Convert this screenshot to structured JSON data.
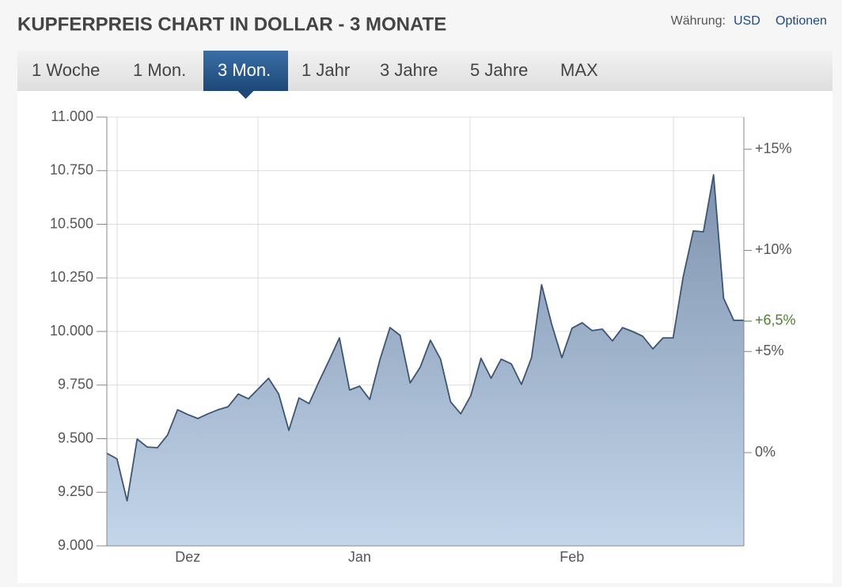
{
  "header": {
    "title": "KUPFERPREIS CHART IN DOLLAR - 3 MONATE",
    "currency_label": "Währung:",
    "currency": "USD",
    "options": "Optionen"
  },
  "tabs": {
    "items": [
      "1 Woche",
      "1 Mon.",
      "3 Mon.",
      "1 Jahr",
      "3 Jahre",
      "5 Jahre",
      "MAX"
    ],
    "active": 2
  },
  "chart_data": {
    "type": "area",
    "color": "#3d5573",
    "categories": [
      null,
      null,
      null,
      null,
      null,
      null,
      null,
      null,
      "Dez",
      null,
      null,
      null,
      null,
      null,
      null,
      null,
      null,
      null,
      null,
      null,
      null,
      null,
      null,
      null,
      null,
      "Jan",
      null,
      null,
      null,
      null,
      null,
      null,
      null,
      null,
      null,
      null,
      null,
      null,
      null,
      null,
      null,
      null,
      null,
      null,
      null,
      null,
      "Feb",
      null,
      null,
      null,
      null,
      null,
      null,
      null,
      null,
      null,
      null,
      null,
      null,
      null,
      null,
      null,
      null,
      null
    ],
    "values": [
      9432,
      9406,
      9210,
      9498,
      9461,
      9458,
      9517,
      9635,
      9613,
      9594,
      9616,
      9635,
      9649,
      9708,
      9686,
      9734,
      9782,
      9708,
      9539,
      9690,
      9664,
      9768,
      9867,
      9970,
      9727,
      9745,
      9683,
      9867,
      10018,
      9982,
      9760,
      9834,
      9959,
      9871,
      9672,
      9616,
      9701,
      9875,
      9782,
      9871,
      9849,
      9753,
      9878,
      10218,
      10033,
      9878,
      10015,
      10041,
      10004,
      10011,
      9956,
      10018,
      10000,
      9978,
      9919,
      9970,
      9970,
      10255,
      10469,
      10465,
      10731,
      10155,
      10052,
      10052
    ],
    "ylim": [
      9000,
      11000
    ],
    "yticks": [
      {
        "value": 9000,
        "label": "9.000"
      },
      {
        "value": 9250,
        "label": "9.250"
      },
      {
        "value": 9500,
        "label": "9.500"
      },
      {
        "value": 9750,
        "label": "9.750"
      },
      {
        "value": 10000,
        "label": "10.000"
      },
      {
        "value": 10250,
        "label": "10.250"
      },
      {
        "value": 10500,
        "label": "10.500"
      },
      {
        "value": 10750,
        "label": "10.750"
      },
      {
        "value": 11000,
        "label": "11.000"
      }
    ],
    "y2lim": [
      -4.61,
      16.59
    ],
    "y2ticks": [
      {
        "value": 0,
        "label": "0%"
      },
      {
        "value": 5,
        "label": "+5%"
      },
      {
        "value": 10,
        "label": "+10%"
      },
      {
        "value": 15,
        "label": "+15%"
      }
    ],
    "current_change": {
      "value": 6.5,
      "label": "+6,5%"
    },
    "current_color": "#4f7f32",
    "grid": true
  }
}
